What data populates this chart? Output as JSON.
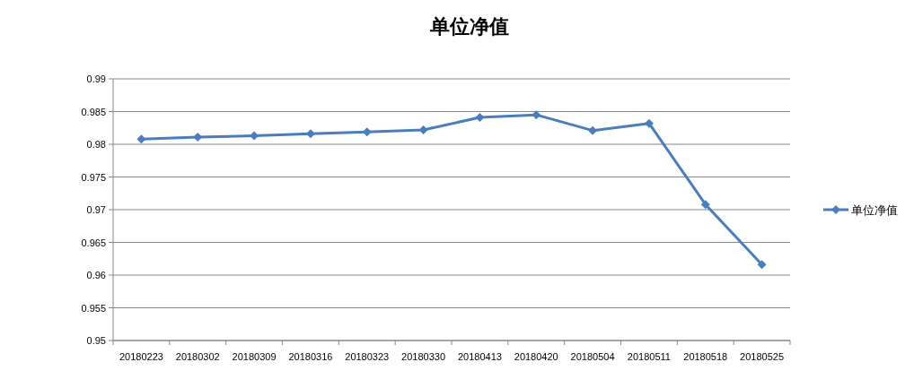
{
  "chart_data": {
    "type": "line",
    "title": "单位净值",
    "categories": [
      "20180223",
      "20180302",
      "20180309",
      "20180316",
      "20180323",
      "20180330",
      "20180413",
      "20180420",
      "20180504",
      "20180511",
      "20180518",
      "20180525"
    ],
    "series": [
      {
        "name": "单位净值",
        "color": "#4a7ebb",
        "values": [
          0.9808,
          0.9811,
          0.9813,
          0.9816,
          0.9819,
          0.9822,
          0.9841,
          0.9845,
          0.9821,
          0.9832,
          0.9708,
          0.9616
        ]
      }
    ],
    "ylim": [
      0.95,
      0.99
    ],
    "yticks": [
      0.95,
      0.955,
      0.96,
      0.965,
      0.97,
      0.975,
      0.98,
      0.985,
      0.99
    ],
    "grid": "y",
    "legend": "right",
    "marker": "diamond",
    "line_style": "solid"
  }
}
